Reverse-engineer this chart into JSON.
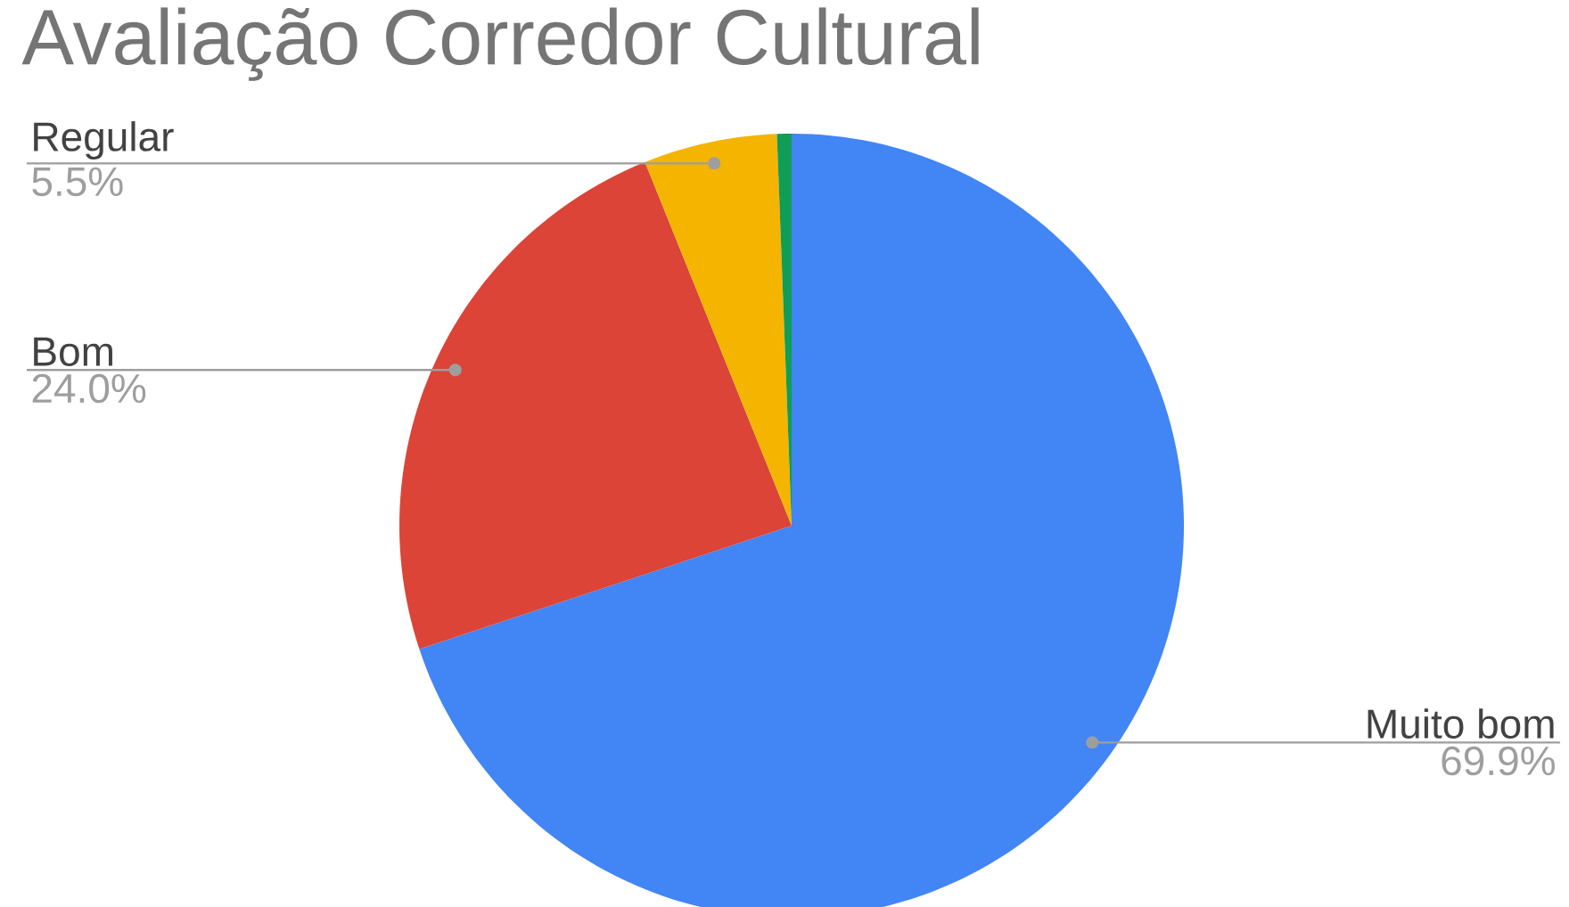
{
  "chart_data": {
    "type": "pie",
    "title": "Avaliação Corredor Cultural",
    "categories": [
      "Muito bom",
      "Bom",
      "Regular",
      null
    ],
    "values": [
      69.9,
      24.0,
      5.5,
      0.6
    ],
    "colors": [
      "#4285f4",
      "#db4437",
      "#f4b400",
      "#0f9d58"
    ],
    "value_labels": [
      "69.9%",
      "24.0%",
      "5.5%",
      null
    ]
  }
}
